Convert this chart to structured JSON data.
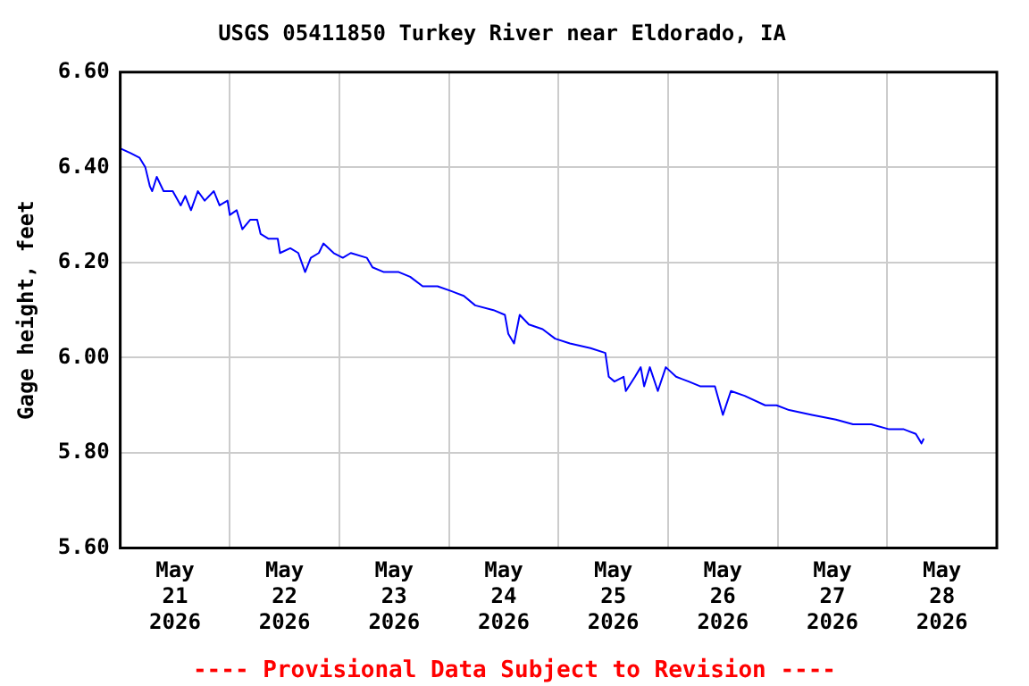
{
  "chart_data": {
    "type": "line",
    "title": "USGS 05411850 Turkey River near Eldorado, IA",
    "ylabel": "Gage height, feet",
    "annotations": [
      "---- Provisional Data Subject to Revision ----"
    ],
    "x": [
      "2026-05-21T00:00",
      "2026-05-21T02:15",
      "2026-05-21T04:15",
      "2026-05-21T05:30",
      "2026-05-21T06:30",
      "2026-05-21T07:00",
      "2026-05-21T08:00",
      "2026-05-21T09:30",
      "2026-05-21T11:30",
      "2026-05-21T13:15",
      "2026-05-21T14:15",
      "2026-05-21T15:30",
      "2026-05-21T17:00",
      "2026-05-21T18:30",
      "2026-05-21T20:30",
      "2026-05-21T21:45",
      "2026-05-21T23:30",
      "2026-05-22T00:00",
      "2026-05-22T01:30",
      "2026-05-22T02:45",
      "2026-05-22T04:30",
      "2026-05-22T06:00",
      "2026-05-22T06:45",
      "2026-05-22T08:30",
      "2026-05-22T10:30",
      "2026-05-22T11:00",
      "2026-05-22T13:15",
      "2026-05-22T15:00",
      "2026-05-22T16:30",
      "2026-05-22T17:45",
      "2026-05-22T19:30",
      "2026-05-22T20:30",
      "2026-05-22T22:45",
      "2026-05-23T00:45",
      "2026-05-23T02:30",
      "2026-05-23T06:00",
      "2026-05-23T07:15",
      "2026-05-23T09:45",
      "2026-05-23T13:00",
      "2026-05-23T15:30",
      "2026-05-23T18:15",
      "2026-05-23T21:30",
      "2026-05-24T00:30",
      "2026-05-24T03:15",
      "2026-05-24T05:45",
      "2026-05-24T09:45",
      "2026-05-24T12:15",
      "2026-05-24T13:00",
      "2026-05-24T14:15",
      "2026-05-24T15:30",
      "2026-05-24T17:30",
      "2026-05-24T20:30",
      "2026-05-24T23:15",
      "2026-05-25T02:30",
      "2026-05-25T07:00",
      "2026-05-25T10:15",
      "2026-05-25T11:00",
      "2026-05-25T12:15",
      "2026-05-25T14:15",
      "2026-05-25T14:45",
      "2026-05-25T16:45",
      "2026-05-25T18:00",
      "2026-05-25T18:45",
      "2026-05-25T20:00",
      "2026-05-25T21:45",
      "2026-05-25T23:30",
      "2026-05-26T01:45",
      "2026-05-26T04:30",
      "2026-05-26T07:00",
      "2026-05-26T10:15",
      "2026-05-26T12:00",
      "2026-05-26T13:45",
      "2026-05-26T16:45",
      "2026-05-26T21:15",
      "2026-05-26T23:45",
      "2026-05-27T02:30",
      "2026-05-27T07:30",
      "2026-05-27T12:45",
      "2026-05-27T16:30",
      "2026-05-27T20:30",
      "2026-05-28T00:15",
      "2026-05-28T03:30",
      "2026-05-28T06:15",
      "2026-05-28T07:30",
      "2026-05-28T08:00"
    ],
    "series": [
      {
        "color": "#0000ff",
        "values": [
          6.44,
          6.43,
          6.42,
          6.4,
          6.36,
          6.35,
          6.38,
          6.35,
          6.35,
          6.32,
          6.34,
          6.31,
          6.35,
          6.33,
          6.35,
          6.32,
          6.33,
          6.3,
          6.31,
          6.27,
          6.29,
          6.29,
          6.26,
          6.25,
          6.25,
          6.22,
          6.23,
          6.22,
          6.18,
          6.21,
          6.22,
          6.24,
          6.22,
          6.21,
          6.22,
          6.21,
          6.19,
          6.18,
          6.18,
          6.17,
          6.15,
          6.15,
          6.14,
          6.13,
          6.11,
          6.1,
          6.09,
          6.05,
          6.03,
          6.09,
          6.07,
          6.06,
          6.04,
          6.03,
          6.02,
          6.01,
          5.96,
          5.95,
          5.96,
          5.93,
          5.96,
          5.98,
          5.94,
          5.98,
          5.93,
          5.98,
          5.96,
          5.95,
          5.94,
          5.94,
          5.88,
          5.93,
          5.92,
          5.9,
          5.9,
          5.89,
          5.88,
          5.87,
          5.86,
          5.86,
          5.85,
          5.85,
          5.84,
          5.82,
          5.83
        ]
      }
    ],
    "xlim": [
      "2026-05-21T00:00",
      "2026-05-29T00:00"
    ],
    "xticks": [
      {
        "value": "2026-05-21T12:00",
        "label": "May\n21\n2026"
      },
      {
        "value": "2026-05-22T00:00",
        "label": null
      },
      {
        "value": "2026-05-22T12:00",
        "label": "May\n22\n2026"
      },
      {
        "value": "2026-05-23T00:00",
        "label": null
      },
      {
        "value": "2026-05-23T12:00",
        "label": "May\n23\n2026"
      },
      {
        "value": "2026-05-24T00:00",
        "label": null
      },
      {
        "value": "2026-05-24T12:00",
        "label": "May\n24\n2026"
      },
      {
        "value": "2026-05-25T00:00",
        "label": null
      },
      {
        "value": "2026-05-25T12:00",
        "label": "May\n25\n2026"
      },
      {
        "value": "2026-05-26T00:00",
        "label": null
      },
      {
        "value": "2026-05-26T12:00",
        "label": "May\n26\n2026"
      },
      {
        "value": "2026-05-27T00:00",
        "label": null
      },
      {
        "value": "2026-05-27T12:00",
        "label": "May\n27\n2026"
      },
      {
        "value": "2026-05-28T00:00",
        "label": null
      },
      {
        "value": "2026-05-28T12:00",
        "label": "May\n28\n2026"
      }
    ],
    "ylim": [
      5.6,
      6.6
    ],
    "yticks": [
      {
        "value": 5.6,
        "label": "5.60"
      },
      {
        "value": 5.8,
        "label": "5.80"
      },
      {
        "value": 6.0,
        "label": "6.00"
      },
      {
        "value": 6.2,
        "label": "6.20"
      },
      {
        "value": 6.4,
        "label": "6.40"
      },
      {
        "value": 6.6,
        "label": "6.60"
      }
    ],
    "grid": true,
    "legend": false,
    "marker": "none",
    "line_style": "solid"
  }
}
